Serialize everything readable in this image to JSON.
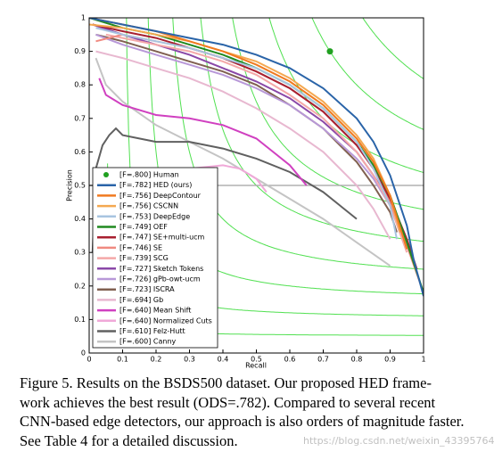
{
  "chart_data": {
    "type": "line",
    "xlabel": "Recall",
    "ylabel": "Precision",
    "xlim": [
      0,
      1
    ],
    "ylim": [
      0,
      1
    ],
    "xticks": [
      0,
      0.1,
      0.2,
      0.3,
      0.4,
      0.5,
      0.6,
      0.7,
      0.8,
      0.9,
      1
    ],
    "yticks": [
      0,
      0.1,
      0.2,
      0.3,
      0.4,
      0.5,
      0.6,
      0.7,
      0.8,
      0.9,
      1
    ],
    "series": [
      {
        "name": "[F=.800] Human",
        "color": "#20a020",
        "marker": true,
        "x": [
          0.72
        ],
        "values": [
          0.9
        ]
      },
      {
        "name": "[F=.782] HED (ours)",
        "color": "#2a64a8",
        "x": [
          0,
          0.1,
          0.2,
          0.3,
          0.4,
          0.5,
          0.6,
          0.7,
          0.8,
          0.85,
          0.9,
          0.95,
          0.97,
          1
        ],
        "values": [
          1,
          0.98,
          0.96,
          0.94,
          0.92,
          0.89,
          0.85,
          0.79,
          0.7,
          0.63,
          0.53,
          0.38,
          0.28,
          0.17
        ]
      },
      {
        "name": "[F=.756] DeepContour",
        "color": "#f07a20",
        "x": [
          0,
          0.1,
          0.2,
          0.3,
          0.4,
          0.5,
          0.6,
          0.7,
          0.8,
          0.85,
          0.9,
          0.95
        ],
        "values": [
          1,
          0.98,
          0.96,
          0.93,
          0.9,
          0.86,
          0.81,
          0.74,
          0.64,
          0.57,
          0.47,
          0.31
        ]
      },
      {
        "name": "[F=.756] CSCNN",
        "color": "#f4a850",
        "x": [
          0,
          0.1,
          0.2,
          0.3,
          0.4,
          0.5,
          0.6,
          0.7,
          0.8,
          0.85,
          0.9,
          0.93
        ],
        "values": [
          0.98,
          0.97,
          0.95,
          0.93,
          0.9,
          0.87,
          0.82,
          0.75,
          0.65,
          0.58,
          0.47,
          0.36
        ]
      },
      {
        "name": "[F=.753] DeepEdge",
        "color": "#a8c4e0",
        "x": [
          0.02,
          0.1,
          0.2,
          0.3,
          0.4,
          0.5,
          0.6,
          0.7,
          0.8,
          0.85,
          0.9,
          0.92
        ],
        "values": [
          0.97,
          0.95,
          0.93,
          0.91,
          0.88,
          0.85,
          0.8,
          0.73,
          0.63,
          0.55,
          0.44,
          0.34
        ]
      },
      {
        "name": "[F=.749] OEF",
        "color": "#208a20",
        "x": [
          0,
          0.1,
          0.2,
          0.3,
          0.4,
          0.5,
          0.6,
          0.7,
          0.8,
          0.85,
          0.9,
          0.95,
          1
        ],
        "values": [
          1,
          0.97,
          0.95,
          0.92,
          0.89,
          0.85,
          0.8,
          0.73,
          0.63,
          0.56,
          0.47,
          0.33,
          0.18
        ]
      },
      {
        "name": "[F=.747] SE+multi-ucm",
        "color": "#a82030",
        "x": [
          0.01,
          0.1,
          0.2,
          0.3,
          0.4,
          0.5,
          0.6,
          0.7,
          0.8,
          0.85,
          0.9,
          0.95,
          0.98
        ],
        "values": [
          0.98,
          0.96,
          0.94,
          0.91,
          0.88,
          0.84,
          0.79,
          0.72,
          0.62,
          0.55,
          0.46,
          0.34,
          0.25
        ]
      },
      {
        "name": "[F=.746] SE",
        "color": "#f08a80",
        "x": [
          0.02,
          0.1,
          0.2,
          0.3,
          0.4,
          0.5,
          0.6,
          0.7,
          0.8,
          0.85,
          0.9,
          0.95,
          1
        ],
        "values": [
          0.93,
          0.95,
          0.93,
          0.91,
          0.88,
          0.84,
          0.79,
          0.72,
          0.62,
          0.55,
          0.45,
          0.32,
          0.18
        ]
      },
      {
        "name": "[F=.739] SCG",
        "color": "#f4a8a8",
        "x": [
          0.05,
          0.1,
          0.2,
          0.3,
          0.4,
          0.5,
          0.6,
          0.7,
          0.8,
          0.85,
          0.9,
          0.95
        ],
        "values": [
          0.95,
          0.94,
          0.92,
          0.9,
          0.87,
          0.83,
          0.77,
          0.7,
          0.6,
          0.53,
          0.44,
          0.3
        ]
      },
      {
        "name": "[F=.727] Sketch Tokens",
        "color": "#8a48a8",
        "x": [
          0.01,
          0.1,
          0.2,
          0.3,
          0.4,
          0.5,
          0.6,
          0.7,
          0.8,
          0.85,
          0.9,
          0.95,
          0.97
        ],
        "values": [
          0.98,
          0.95,
          0.92,
          0.89,
          0.85,
          0.81,
          0.76,
          0.69,
          0.6,
          0.53,
          0.45,
          0.33,
          0.27
        ]
      },
      {
        "name": "[F=.726] gPb-owt-ucm",
        "color": "#b898d8",
        "x": [
          0.02,
          0.1,
          0.2,
          0.3,
          0.4,
          0.5,
          0.6,
          0.7,
          0.8,
          0.85,
          0.9,
          0.95
        ],
        "values": [
          0.95,
          0.92,
          0.89,
          0.86,
          0.83,
          0.79,
          0.74,
          0.67,
          0.58,
          0.52,
          0.44,
          0.33
        ]
      },
      {
        "name": "[F=.723] ISCRA",
        "color": "#806050",
        "x": [
          0.02,
          0.1,
          0.2,
          0.3,
          0.4,
          0.5,
          0.6,
          0.7,
          0.8,
          0.85,
          0.9,
          0.92
        ],
        "values": [
          0.95,
          0.93,
          0.9,
          0.87,
          0.84,
          0.8,
          0.74,
          0.67,
          0.57,
          0.5,
          0.42,
          0.36
        ]
      },
      {
        "name": "[F=.694] Gb",
        "color": "#e8b8d0",
        "x": [
          0.02,
          0.1,
          0.2,
          0.3,
          0.4,
          0.5,
          0.6,
          0.7,
          0.8,
          0.85,
          0.9
        ],
        "values": [
          0.9,
          0.88,
          0.85,
          0.82,
          0.78,
          0.73,
          0.67,
          0.6,
          0.5,
          0.43,
          0.34
        ]
      },
      {
        "name": "[F=.640] Mean Shift",
        "color": "#d040c0",
        "x": [
          0.03,
          0.05,
          0.1,
          0.2,
          0.3,
          0.4,
          0.5,
          0.55,
          0.6,
          0.65
        ],
        "values": [
          0.82,
          0.77,
          0.74,
          0.71,
          0.7,
          0.68,
          0.64,
          0.6,
          0.56,
          0.5
        ]
      },
      {
        "name": "[F=.640] Normalized Cuts",
        "color": "#f0a8d8",
        "x": [
          0.1,
          0.15,
          0.2,
          0.3,
          0.4,
          0.45,
          0.5,
          0.53
        ],
        "values": [
          0.48,
          0.5,
          0.52,
          0.55,
          0.56,
          0.55,
          0.52,
          0.48
        ]
      },
      {
        "name": "[F=.610] Felz-Hutt",
        "color": "#606060",
        "x": [
          0.01,
          0.02,
          0.04,
          0.06,
          0.08,
          0.1,
          0.15,
          0.2,
          0.3,
          0.4,
          0.5,
          0.6,
          0.7,
          0.8
        ],
        "values": [
          0.3,
          0.55,
          0.62,
          0.65,
          0.67,
          0.65,
          0.64,
          0.63,
          0.63,
          0.61,
          0.58,
          0.54,
          0.48,
          0.4
        ]
      },
      {
        "name": "[F=.600] Canny",
        "color": "#c4c4c4",
        "x": [
          0.02,
          0.05,
          0.1,
          0.2,
          0.3,
          0.4,
          0.5,
          0.6,
          0.7,
          0.8,
          0.9
        ],
        "values": [
          0.88,
          0.8,
          0.75,
          0.68,
          0.63,
          0.58,
          0.52,
          0.46,
          0.4,
          0.33,
          0.26
        ]
      }
    ]
  },
  "caption": [
    "Figure 5. Results on the BSDS500 dataset.  Our proposed HED frame-",
    "work achieves the best result (ODS=.782).  Compared to several recent",
    "CNN-based edge detectors, our approach is also orders of magnitude faster.",
    "See Table 4 for a detailed discussion."
  ],
  "watermark": "https://blog.csdn.net/weixin_43395764"
}
